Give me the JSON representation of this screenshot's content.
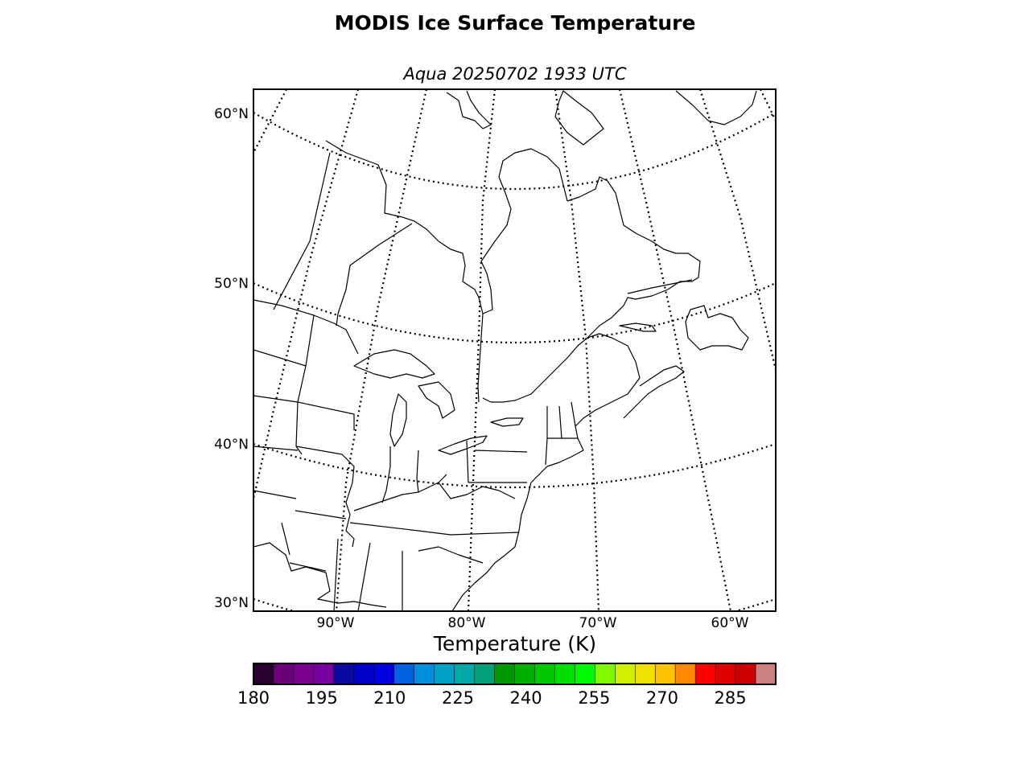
{
  "title": "MODIS Ice Surface Temperature",
  "subtitle": "Aqua 20250702 1933 UTC",
  "map": {
    "lat_labels": [
      {
        "label": "60°N",
        "lat": 60
      },
      {
        "label": "50°N",
        "lat": 50
      },
      {
        "label": "40°N",
        "lat": 40
      },
      {
        "label": "30°N",
        "lat": 30
      }
    ],
    "lon_labels": [
      {
        "label": "90°W",
        "lon": -90
      },
      {
        "label": "80°W",
        "lon": -80
      },
      {
        "label": "70°W",
        "lon": -70
      },
      {
        "label": "60°W",
        "lon": -60
      }
    ],
    "graticule_style": "dotted"
  },
  "colorbar": {
    "label": "Temperature (K)",
    "min": 180,
    "max": 295,
    "step": 5,
    "ticks": [
      "180",
      "195",
      "210",
      "225",
      "240",
      "255",
      "270",
      "285"
    ],
    "colors": [
      "#2a0030",
      "#6b007a",
      "#7a0090",
      "#7800a0",
      "#0a0aa0",
      "#0000c8",
      "#0000e0",
      "#0060e0",
      "#0090e0",
      "#00a0c8",
      "#00a8a8",
      "#00a078",
      "#009800",
      "#00b000",
      "#00c800",
      "#00e000",
      "#00f800",
      "#80f800",
      "#d0f000",
      "#f0e000",
      "#ffc000",
      "#ff8800",
      "#ff0000",
      "#e00000",
      "#cc0000",
      "#cc8080"
    ]
  }
}
